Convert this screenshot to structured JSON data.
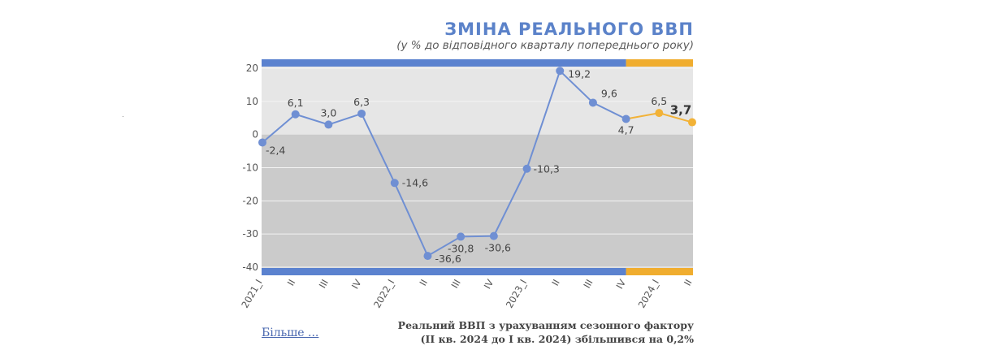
{
  "header": {
    "title": "ЗМІНА РЕАЛЬНОГО ВВП",
    "subtitle": "(у % до відповідного кварталу попереднього року)"
  },
  "footer": {
    "more_link": "Більше ...",
    "note_line1": "Реальний ВВП з урахуванням сезонного фактору",
    "note_line2": "(ІІ кв. 2024 до І кв. 2024) збільшився на 0,2%"
  },
  "colors": {
    "actual": "#6f8fd3",
    "forecast": "#f2b237",
    "band_actual": "#5b82cf",
    "band_forecast": "#f0ad2f",
    "positive_bg": "#e6e6e6",
    "negative_bg": "#cbcbcb"
  },
  "chart_data": {
    "type": "line",
    "categories": [
      "2021_I",
      "II",
      "III",
      "IV",
      "2022_I",
      "II",
      "III",
      "IV",
      "2023_I",
      "II",
      "III",
      "IV",
      "2024_I",
      "II"
    ],
    "values": [
      -2.4,
      6.1,
      3.0,
      6.3,
      -14.6,
      -36.6,
      -30.8,
      -30.6,
      -10.3,
      19.2,
      9.6,
      4.7,
      6.5,
      3.7
    ],
    "labels": [
      "-2,4",
      "6,1",
      "3,0",
      "6,3",
      "-14,6",
      "-36,6",
      "-30,8",
      "-30,6",
      "-10,3",
      "19,2",
      "9,6",
      "4,7",
      "6,5",
      "3,7"
    ],
    "highlight_index": 2024,
    "highlight_value_label": "3,7",
    "forecast_start_index": 11,
    "yticks": [
      20,
      10,
      0,
      -10,
      -20,
      -30,
      -40
    ],
    "ytick_labels": [
      "20",
      "10",
      "0",
      "-10",
      "-20",
      "-30",
      "-40"
    ],
    "ylim": [
      -40,
      20
    ],
    "grid": true
  }
}
